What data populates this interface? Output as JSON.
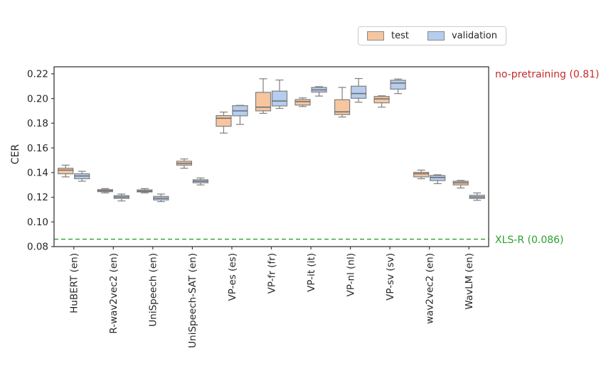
{
  "figure": {
    "ylabel": "CER",
    "legend": {
      "test_label": "test",
      "validation_label": "validation"
    },
    "annotations": {
      "no_pretraining": "no-pretraining (0.81)",
      "xlsr": "XLS-R (0.086)"
    },
    "colors": {
      "annotation_red": "#c32b2b",
      "annotation_green": "#2ca02c",
      "box_edge": "#7f7f7f",
      "spine": "#3a3a3a"
    }
  },
  "chart_data": {
    "type": "boxplot",
    "title": "",
    "xlabel": "",
    "ylabel": "CER",
    "grid": false,
    "legend_position": "top-center",
    "ylim": [
      0.08,
      0.2257
    ],
    "yticks": [
      0.08,
      0.1,
      0.12,
      0.14,
      0.16,
      0.18,
      0.2,
      0.22
    ],
    "categories": [
      "HuBERT (en)",
      "R-wav2vec2 (en)",
      "UniSpeech (en)",
      "UniSpeech-SAT (en)",
      "VP-es (es)",
      "VP-fr (fr)",
      "VP-it (it)",
      "VP-nl (nl)",
      "VP-sv (sv)",
      "wav2vec2 (en)",
      "WavLM (en)"
    ],
    "series": [
      {
        "name": "test",
        "color": "#f5c6a0",
        "boxes": [
          {
            "lo": 0.1365,
            "q1": 0.139,
            "med": 0.142,
            "q3": 0.1435,
            "hi": 0.146
          },
          {
            "lo": 0.1235,
            "q1": 0.1245,
            "med": 0.1253,
            "q3": 0.1262,
            "hi": 0.127
          },
          {
            "lo": 0.1235,
            "q1": 0.1243,
            "med": 0.125,
            "q3": 0.126,
            "hi": 0.127
          },
          {
            "lo": 0.1435,
            "q1": 0.146,
            "med": 0.1475,
            "q3": 0.1492,
            "hi": 0.151
          },
          {
            "lo": 0.172,
            "q1": 0.1775,
            "med": 0.184,
            "q3": 0.1862,
            "hi": 0.189
          },
          {
            "lo": 0.188,
            "q1": 0.19,
            "med": 0.193,
            "q3": 0.205,
            "hi": 0.216
          },
          {
            "lo": 0.1935,
            "q1": 0.1947,
            "med": 0.1975,
            "q3": 0.1992,
            "hi": 0.2005
          },
          {
            "lo": 0.185,
            "q1": 0.187,
            "med": 0.1892,
            "q3": 0.199,
            "hi": 0.209
          },
          {
            "lo": 0.193,
            "q1": 0.1965,
            "med": 0.1997,
            "q3": 0.2017,
            "hi": 0.2022
          },
          {
            "lo": 0.135,
            "q1": 0.1365,
            "med": 0.139,
            "q3": 0.1402,
            "hi": 0.142
          },
          {
            "lo": 0.1275,
            "q1": 0.13,
            "med": 0.1317,
            "q3": 0.133,
            "hi": 0.1336
          }
        ]
      },
      {
        "name": "validation",
        "color": "#b6cdee",
        "boxes": [
          {
            "lo": 0.133,
            "q1": 0.135,
            "med": 0.1372,
            "q3": 0.139,
            "hi": 0.141
          },
          {
            "lo": 0.117,
            "q1": 0.119,
            "med": 0.1202,
            "q3": 0.1213,
            "hi": 0.1226
          },
          {
            "lo": 0.1165,
            "q1": 0.1178,
            "med": 0.1192,
            "q3": 0.1207,
            "hi": 0.1226
          },
          {
            "lo": 0.13,
            "q1": 0.1317,
            "med": 0.133,
            "q3": 0.1342,
            "hi": 0.1356
          },
          {
            "lo": 0.179,
            "q1": 0.186,
            "med": 0.19,
            "q3": 0.1942,
            "hi": 0.1945
          },
          {
            "lo": 0.192,
            "q1": 0.194,
            "med": 0.198,
            "q3": 0.206,
            "hi": 0.215
          },
          {
            "lo": 0.202,
            "q1": 0.2052,
            "med": 0.207,
            "q3": 0.209,
            "hi": 0.2096
          },
          {
            "lo": 0.197,
            "q1": 0.2002,
            "med": 0.204,
            "q3": 0.21,
            "hi": 0.2162
          },
          {
            "lo": 0.204,
            "q1": 0.2076,
            "med": 0.2125,
            "q3": 0.2148,
            "hi": 0.2158
          },
          {
            "lo": 0.131,
            "q1": 0.1335,
            "med": 0.136,
            "q3": 0.1376,
            "hi": 0.1382
          },
          {
            "lo": 0.1175,
            "q1": 0.119,
            "med": 0.1202,
            "q3": 0.1216,
            "hi": 0.1235
          }
        ]
      }
    ],
    "reference_lines": [
      {
        "label": "XLS-R (0.086)",
        "value": 0.086,
        "color": "#2ca02c",
        "style": "dashed"
      }
    ],
    "annotations": [
      {
        "label": "no-pretraining (0.81)",
        "color": "#c32b2b",
        "position": "top-right-outside"
      }
    ]
  }
}
